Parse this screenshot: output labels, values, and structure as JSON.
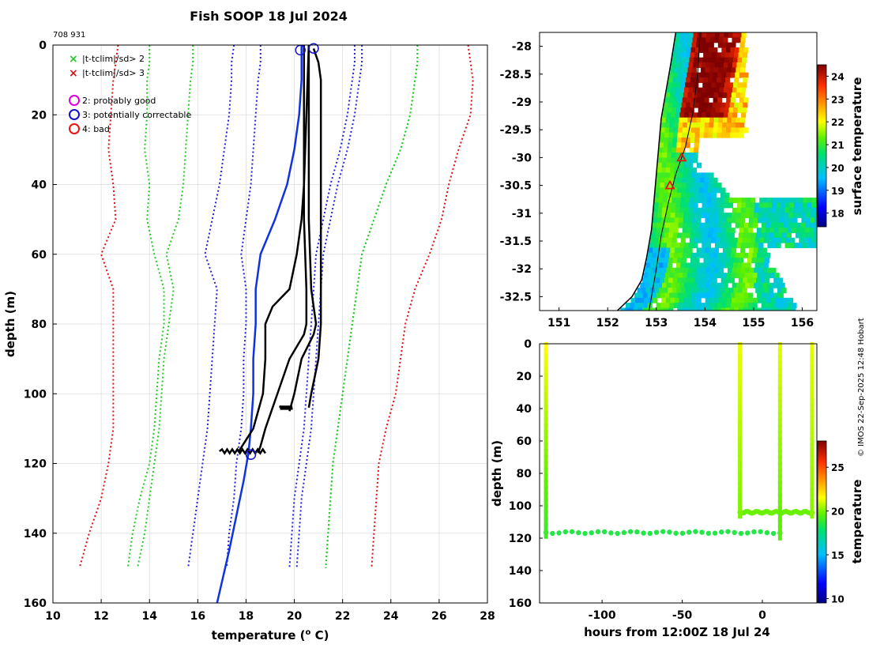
{
  "title": "Fish SOOP 18 Jul 2024",
  "callsign_id": "708 931",
  "credit": "© IMOS 22-Sep-2025 12:48 Hobart",
  "colors": {
    "sd2": "#22cc22",
    "sd3": "#dd1111",
    "probably_good": "#dd00dd",
    "correctable": "#1111cc",
    "bad": "#ee1111",
    "profile": "#000000",
    "clim_blue": "#2222dd",
    "climatology_mean": "#1133dd"
  },
  "legend": {
    "sd2": "|t-tclim|/sd> 2",
    "sd3": "|t-tclim|/sd> 3",
    "flag2": "2: probably good",
    "flag3": "3: potentially correctable",
    "flag4": "4: bad"
  },
  "chart_data": [
    {
      "name": "profile",
      "type": "line",
      "xlabel_main": "temperature (",
      "xlabel_sup": "o",
      "xlabel_end": " C)",
      "ylabel": "depth (m)",
      "xlim": [
        10,
        28
      ],
      "ylim": [
        160,
        0
      ],
      "xticks": [
        "10",
        "12",
        "14",
        "16",
        "18",
        "20",
        "22",
        "24",
        "26",
        "28"
      ],
      "yticks": [
        "0",
        "20",
        "40",
        "60",
        "80",
        "100",
        "120",
        "140",
        "160"
      ],
      "grid": true,
      "climatology_envelopes": [
        {
          "color_key": "sd3",
          "depths": [
            0,
            5,
            10,
            20,
            30,
            40,
            50,
            60,
            70,
            80,
            90,
            100,
            110,
            120,
            130,
            140,
            150
          ],
          "left": [
            12.7,
            12.6,
            12.5,
            12.4,
            12.3,
            12.5,
            12.6,
            12.0,
            12.5,
            12.5,
            12.5,
            12.5,
            12.5,
            12.3,
            12.0,
            11.5,
            11.1
          ],
          "right": [
            27.2,
            27.3,
            27.4,
            27.3,
            26.8,
            26.4,
            26.1,
            25.6,
            25.0,
            24.6,
            24.4,
            24.2,
            23.8,
            23.5,
            23.4,
            23.3,
            23.2
          ]
        },
        {
          "color_key": "sd2",
          "depths": [
            0,
            5,
            10,
            20,
            30,
            40,
            50,
            60,
            70,
            80,
            90,
            100,
            110,
            120,
            130,
            140,
            150
          ],
          "left": [
            14.0,
            14.0,
            13.9,
            13.9,
            13.8,
            14.0,
            13.9,
            14.2,
            14.6,
            14.6,
            14.4,
            14.3,
            14.2,
            14.0,
            13.6,
            13.3,
            13.1
          ],
          "right": [
            25.1,
            25.1,
            25.0,
            24.8,
            24.4,
            23.8,
            23.3,
            22.8,
            22.6,
            22.4,
            22.2,
            22.0,
            21.8,
            21.6,
            21.5,
            21.4,
            21.3
          ]
        },
        {
          "color_key": "sd2",
          "depths": [
            0,
            5,
            10,
            20,
            30,
            40,
            50,
            60,
            70,
            80,
            90,
            100,
            110,
            120,
            130,
            140,
            150
          ],
          "left": [
            15.8,
            15.8,
            15.7,
            15.6,
            15.5,
            15.4,
            15.2,
            14.7,
            15.0,
            14.8,
            14.6,
            14.5,
            14.4,
            14.2,
            14.0,
            13.8,
            13.5
          ],
          "right": [
            25.1,
            25.1,
            25.0,
            24.8,
            24.4,
            23.8,
            23.3,
            22.8,
            22.6,
            22.4,
            22.2,
            22.0,
            21.8,
            21.6,
            21.5,
            21.4,
            21.3
          ]
        },
        {
          "color_key": "clim_blue",
          "depths": [
            0,
            5,
            10,
            20,
            30,
            40,
            50,
            60,
            70,
            80,
            90,
            100,
            110,
            120,
            130,
            140,
            150
          ],
          "left": [
            17.5,
            17.4,
            17.4,
            17.3,
            17.1,
            16.9,
            16.6,
            16.3,
            16.8,
            16.7,
            16.6,
            16.5,
            16.4,
            16.2,
            16.0,
            15.8,
            15.6
          ],
          "right": [
            22.8,
            22.8,
            22.7,
            22.5,
            22.2,
            21.8,
            21.5,
            21.2,
            21.1,
            21.0,
            20.9,
            20.8,
            20.7,
            20.5,
            20.3,
            20.2,
            20.1
          ]
        },
        {
          "color_key": "clim_blue",
          "depths": [
            0,
            5,
            10,
            20,
            30,
            40,
            50,
            60,
            70,
            80,
            90,
            100,
            110,
            120,
            130,
            140,
            150
          ],
          "left": [
            18.6,
            18.6,
            18.5,
            18.4,
            18.3,
            18.2,
            18.0,
            17.8,
            18.0,
            18.0,
            17.9,
            17.9,
            17.8,
            17.6,
            17.5,
            17.3,
            17.2
          ],
          "right": [
            22.5,
            22.5,
            22.4,
            22.2,
            21.9,
            21.5,
            21.2,
            20.9,
            20.8,
            20.7,
            20.6,
            20.5,
            20.4,
            20.2,
            20.0,
            19.9,
            19.8
          ]
        }
      ],
      "mean_profile": {
        "color_key": "climatology_mean",
        "depths": [
          0,
          10,
          20,
          30,
          40,
          50,
          60,
          70,
          80,
          90,
          100,
          110,
          117,
          125,
          135,
          145,
          160
        ],
        "temps": [
          20.3,
          20.3,
          20.2,
          20.0,
          19.7,
          19.2,
          18.6,
          18.4,
          18.4,
          18.3,
          18.3,
          18.2,
          18.1,
          17.9,
          17.6,
          17.3,
          16.8
        ]
      },
      "series": [
        {
          "name": "drop1",
          "depths": [
            0,
            10,
            30,
            50,
            70,
            80,
            83,
            90,
            100,
            110,
            115,
            117
          ],
          "temps": [
            20.4,
            20.4,
            20.4,
            20.4,
            20.5,
            20.5,
            20.4,
            19.8,
            19.3,
            18.8,
            18.6,
            18.5
          ]
        },
        {
          "name": "drop2",
          "depths": [
            0,
            10,
            30,
            50,
            70,
            80,
            83,
            90,
            100,
            105
          ],
          "temps": [
            20.6,
            20.6,
            20.6,
            20.6,
            20.7,
            20.9,
            20.8,
            20.3,
            20.0,
            19.8
          ]
        },
        {
          "name": "drop3",
          "depths": [
            1,
            5,
            10,
            30,
            50,
            70,
            80,
            90,
            100,
            104
          ],
          "temps": [
            20.8,
            21.0,
            21.1,
            21.1,
            21.1,
            21.1,
            21.1,
            21.0,
            20.7,
            20.6
          ]
        },
        {
          "name": "drop4",
          "depths": [
            0,
            20,
            40,
            50,
            60,
            70,
            75,
            80,
            90,
            100,
            110,
            116.5
          ],
          "temps": [
            20.6,
            20.5,
            20.4,
            20.3,
            20.1,
            19.8,
            19.1,
            18.8,
            18.8,
            18.7,
            18.3,
            17.7
          ]
        }
      ],
      "bottom_spikes": [
        {
          "depth": 116.5,
          "tmin": 16.9,
          "tmax": 18.8
        },
        {
          "depth": 104,
          "tmin": 19.4,
          "tmax": 19.9
        }
      ],
      "flag_circles": [
        {
          "t": 20.25,
          "d": 1,
          "flag": "3"
        },
        {
          "t": 20.8,
          "d": 0.5,
          "flag": "3"
        },
        {
          "t": 18.2,
          "d": 117,
          "flag": "3"
        }
      ]
    },
    {
      "name": "sst_map",
      "type": "heatmap",
      "xlim": [
        150.6,
        156.3
      ],
      "ylim": [
        -32.75,
        -27.75
      ],
      "xticks": [
        "151",
        "152",
        "153",
        "154",
        "155",
        "156"
      ],
      "yticks": [
        "-28",
        "-28.5",
        "-29",
        "-29.5",
        "-30",
        "-30.5",
        "-31",
        "-31.5",
        "-32",
        "-32.5"
      ],
      "colorbar_label": "surface temperature",
      "colorbar_ticks": [
        "18",
        "19",
        "20",
        "21",
        "22",
        "23",
        "24"
      ],
      "colorbar_range": [
        17.4,
        24.5
      ],
      "coast_lon": [
        153.4,
        153.3,
        153.2,
        153.1,
        153.05,
        153.0,
        152.95,
        152.9,
        152.8,
        152.7,
        152.5,
        152.2
      ],
      "coast_lat": [
        -27.75,
        -28.3,
        -28.8,
        -29.3,
        -29.8,
        -30.3,
        -30.8,
        -31.3,
        -31.8,
        -32.2,
        -32.5,
        -32.75
      ],
      "track_lon": [
        153.9,
        153.85,
        153.75,
        153.6,
        153.4,
        153.25,
        153.1,
        153.0,
        152.85
      ],
      "track_lat": [
        -27.75,
        -28.5,
        -29.2,
        -29.8,
        -30.3,
        -30.8,
        -31.4,
        -32.0,
        -32.75
      ],
      "drop_sites": [
        {
          "lon": 153.52,
          "lat": -30.0
        },
        {
          "lon": 153.28,
          "lat": -30.5
        }
      ]
    },
    {
      "name": "section",
      "type": "scatter",
      "xlabel": "hours from 12:00Z 18 Jul 24",
      "ylabel": "depth (m)",
      "xlim": [
        -139,
        34
      ],
      "ylim": [
        160,
        0
      ],
      "xticks": [
        "-100",
        "-50",
        "0"
      ],
      "xtick_values": [
        -100,
        -50,
        0
      ],
      "yticks": [
        "0",
        "20",
        "40",
        "60",
        "80",
        "100",
        "120",
        "140",
        "160"
      ],
      "colorbar_label": "temperature",
      "colorbar_ticks": [
        "10",
        "15",
        "20",
        "25"
      ],
      "colorbar_range": [
        9.5,
        28
      ],
      "drops": [
        {
          "hour": -135,
          "bottom": 116,
          "surface_temp": 21.5,
          "deep_temp": 19.0
        },
        {
          "hour": -14,
          "bottom": 104,
          "surface_temp": 21.3,
          "deep_temp": 20.0
        },
        {
          "hour": 11,
          "bottom": 117,
          "surface_temp": 21.2,
          "deep_temp": 19.5
        },
        {
          "hour": 31,
          "bottom": 104,
          "surface_temp": 21.2,
          "deep_temp": 20.2
        }
      ],
      "tracks": [
        {
          "h0": -135,
          "h1": 11,
          "depth": 116.5,
          "temp": 18.5
        },
        {
          "h0": -14,
          "h1": 31,
          "depth": 104,
          "temp": 19.8
        }
      ]
    }
  ]
}
